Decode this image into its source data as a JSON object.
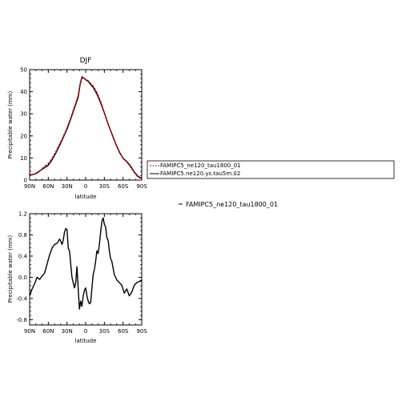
{
  "chart_data": [
    {
      "type": "line",
      "title": "DJF",
      "xlabel": "latitude",
      "ylabel": "Precipitable water (mm)",
      "xlim": [
        90,
        -90
      ],
      "ylim": [
        0,
        50
      ],
      "x_ticks": [
        90,
        60,
        30,
        0,
        -30,
        -60,
        -90
      ],
      "x_tick_labels": [
        "90N",
        "60N",
        "30N",
        "0",
        "30S",
        "60S",
        "90S"
      ],
      "y_ticks": [
        0,
        10,
        20,
        30,
        40,
        50
      ],
      "y_tick_labels": [
        "0",
        "10",
        "20",
        "30",
        "40",
        "50"
      ],
      "legend": {
        "placement": "right, outside plot"
      },
      "series": [
        {
          "name": "FAMIPC5_ne120_tau1800_01",
          "color": "#cc0000",
          "dash": "dashed",
          "x": [
            90,
            84,
            78,
            72,
            66,
            60,
            54,
            48,
            42,
            36,
            30,
            24,
            18,
            12,
            9,
            6,
            3,
            0,
            -3,
            -6,
            -9,
            -12,
            -18,
            -24,
            -30,
            -36,
            -42,
            -48,
            -54,
            -60,
            -66,
            -72,
            -78,
            -84,
            -90
          ],
          "y": [
            2.3,
            2.5,
            3.4,
            4.6,
            6.2,
            7.4,
            9.8,
            12.8,
            16.2,
            19.7,
            23.6,
            28.2,
            33.2,
            38.3,
            43.5,
            46.8,
            46.3,
            45.6,
            45.2,
            44.5,
            43.4,
            42.6,
            39.7,
            35.6,
            30.6,
            25.4,
            20.8,
            16.5,
            12.5,
            9.8,
            8.2,
            6.0,
            3.4,
            1.4,
            0.6
          ]
        },
        {
          "name": "FAMIPC5.ne120.ys.tau5m.02",
          "color": "#000000",
          "dash": "solid",
          "x": [
            90,
            84,
            78,
            72,
            66,
            60,
            54,
            48,
            42,
            36,
            30,
            24,
            18,
            12,
            9,
            6,
            3,
            0,
            -3,
            -6,
            -9,
            -12,
            -18,
            -24,
            -30,
            -36,
            -42,
            -48,
            -54,
            -60,
            -66,
            -72,
            -78,
            -84,
            -90
          ],
          "y": [
            2.5,
            2.5,
            3.2,
            4.5,
            5.6,
            6.7,
            9.2,
            12.2,
            15.6,
            19.3,
            23.0,
            27.7,
            32.6,
            37.6,
            43.2,
            46.4,
            46.2,
            45.4,
            44.9,
            44.0,
            42.9,
            42.0,
            38.9,
            35.0,
            30.4,
            25.3,
            21.0,
            16.6,
            12.8,
            9.9,
            8.4,
            6.4,
            3.7,
            1.7,
            0.8
          ]
        }
      ]
    },
    {
      "type": "line",
      "title": "",
      "xlabel": "latitude",
      "ylabel": "Precipitable water (mm)",
      "xlim": [
        90,
        -90
      ],
      "ylim": [
        -0.9,
        1.2
      ],
      "x_ticks": [
        90,
        60,
        30,
        0,
        -30,
        -60,
        -90
      ],
      "x_tick_labels": [
        "90N",
        "60N",
        "30N",
        "0",
        "30S",
        "60S",
        "90S"
      ],
      "y_ticks": [
        -0.8,
        -0.4,
        0.0,
        0.4,
        0.8,
        1.2
      ],
      "y_tick_labels": [
        "-0.8",
        "-0.4",
        "0.0",
        "0.4",
        "0.8",
        "1.2"
      ],
      "legend": {
        "placement": "right, outside plot"
      },
      "series": [
        {
          "name": "FAMIPC5_ne120_tau1800_01",
          "color": "#000000",
          "dash": "solid",
          "x": [
            90,
            86,
            82,
            78,
            74,
            70,
            66,
            62,
            58,
            54,
            50,
            46,
            44,
            42,
            40,
            38,
            36,
            34,
            32,
            30,
            28,
            26,
            24,
            22,
            20,
            18,
            16,
            14,
            12,
            10,
            8,
            6,
            4,
            2,
            0,
            -2,
            -4,
            -6,
            -8,
            -10,
            -12,
            -14,
            -16,
            -18,
            -20,
            -22,
            -24,
            -26,
            -28,
            -30,
            -32,
            -34,
            -36,
            -38,
            -40,
            -42,
            -46,
            -50,
            -54,
            -58,
            -62,
            -66,
            -70,
            -74,
            -78,
            -82,
            -86,
            -90
          ],
          "y": [
            -0.35,
            -0.22,
            -0.12,
            0.0,
            -0.04,
            0.02,
            0.08,
            0.25,
            0.42,
            0.55,
            0.62,
            0.64,
            0.68,
            0.72,
            0.68,
            0.62,
            0.7,
            0.85,
            0.92,
            0.9,
            0.55,
            0.5,
            0.25,
            0.0,
            -0.1,
            -0.2,
            -0.1,
            0.2,
            -0.22,
            -0.6,
            -0.45,
            -0.55,
            -0.35,
            -0.25,
            -0.2,
            -0.35,
            -0.45,
            -0.5,
            -0.48,
            -0.2,
            0.05,
            0.15,
            0.3,
            0.5,
            0.45,
            0.62,
            0.85,
            1.05,
            1.12,
            1.0,
            0.95,
            0.75,
            0.7,
            0.5,
            0.35,
            0.3,
            0.05,
            -0.05,
            -0.1,
            -0.15,
            -0.3,
            -0.22,
            -0.35,
            -0.28,
            -0.15,
            -0.1,
            -0.08,
            -0.05
          ]
        }
      ]
    }
  ]
}
